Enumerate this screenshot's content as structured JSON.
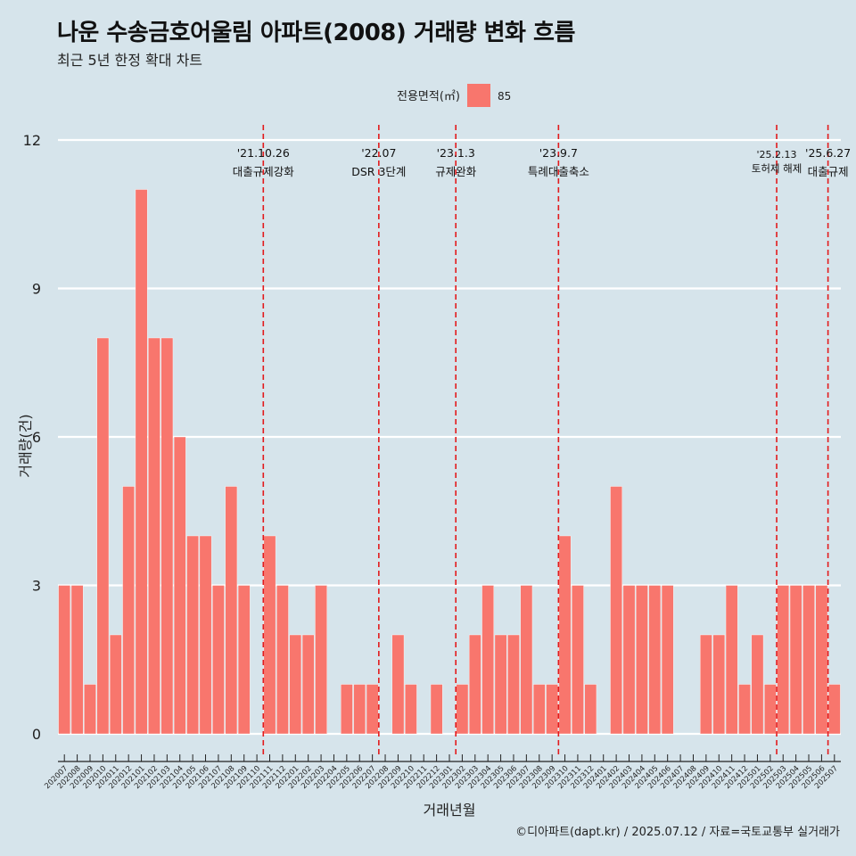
{
  "header": {
    "title": "나운 수송금호어울림 아파트(2008) 거래량 변화 흐름",
    "subtitle": "최근 5년 한정 확대 차트"
  },
  "footer": {
    "credit": "©디아파트(dapt.kr) / 2025.07.12 / 자료=국토교통부 실거래가"
  },
  "colors": {
    "bar": "#f8766d",
    "background": "#d6e4eb",
    "grid": "#ffffff",
    "event_line": "#e31a1c"
  },
  "chart_data": {
    "type": "bar",
    "xlabel": "거래년월",
    "ylabel": "거래량(건)",
    "ylim": [
      -0.5,
      12.5
    ],
    "yticks": [
      0,
      3,
      6,
      9,
      12
    ],
    "legend": {
      "title": "전용면적(㎡)",
      "placement": "top",
      "entries": [
        {
          "label": "85",
          "color": "#f8766d"
        }
      ]
    },
    "categories": [
      "202007",
      "202008",
      "202009",
      "202010",
      "202011",
      "202012",
      "202101",
      "202102",
      "202103",
      "202104",
      "202105",
      "202106",
      "202107",
      "202108",
      "202109",
      "202110",
      "202111",
      "202112",
      "202201",
      "202202",
      "202203",
      "202204",
      "202205",
      "202206",
      "202207",
      "202208",
      "202209",
      "202210",
      "202211",
      "202212",
      "202301",
      "202302",
      "202303",
      "202304",
      "202305",
      "202306",
      "202307",
      "202308",
      "202309",
      "202310",
      "202311",
      "202312",
      "202401",
      "202402",
      "202403",
      "202404",
      "202405",
      "202406",
      "202407",
      "202408",
      "202409",
      "202410",
      "202411",
      "202412",
      "202501",
      "202502",
      "202503",
      "202504",
      "202505",
      "202506",
      "202507"
    ],
    "series": [
      {
        "values": [
          3,
          3,
          1,
          8,
          2,
          5,
          11,
          8,
          8,
          6,
          4,
          4,
          3,
          5,
          3,
          0,
          4,
          3,
          2,
          2,
          3,
          0,
          1,
          1,
          1,
          0,
          2,
          1,
          0,
          1,
          0,
          1,
          2,
          3,
          2,
          2,
          3,
          1,
          1,
          4,
          3,
          1,
          0,
          5,
          3,
          3,
          3,
          3,
          0,
          0,
          2,
          2,
          3,
          1,
          2,
          1,
          3,
          3,
          3,
          3,
          1
        ]
      }
    ],
    "annotations": [
      {
        "line1": "'21.10.26",
        "line2": "대출규제강화",
        "x": "202110"
      },
      {
        "line1": "'22.07",
        "line2": "DSR 3단계",
        "x": "202207"
      },
      {
        "line1": "'23.1.3",
        "line2": "규제완화",
        "x": "202301"
      },
      {
        "line1": "'23.9.7",
        "line2": "특례대출축소",
        "x": "202309"
      },
      {
        "line1": "'25.2.13",
        "line2": "토허제 해제",
        "x": "202502"
      },
      {
        "line1": "'25.6.27",
        "line2": "대출규제",
        "x": "202506"
      }
    ]
  }
}
